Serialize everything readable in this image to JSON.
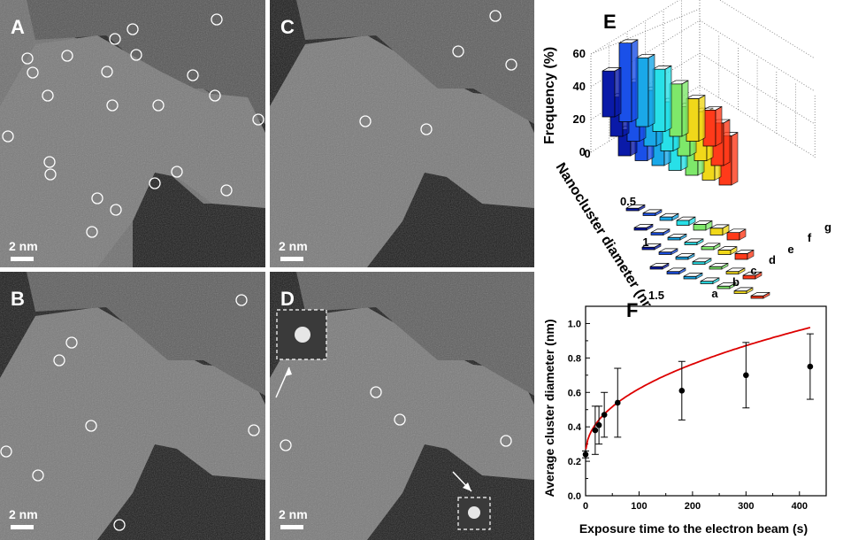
{
  "panels": [
    {
      "label": "A",
      "scale": "2 nm"
    },
    {
      "label": "B",
      "scale": "2 nm"
    },
    {
      "label": "C",
      "scale": "2 nm"
    },
    {
      "label": "D",
      "scale": "2 nm"
    }
  ],
  "panelE": {
    "label": "E",
    "zlabel": "Frequency (%)",
    "ylabel": "Nanocluster diameter (nm)",
    "zticks": [
      "0",
      "20",
      "40",
      "60"
    ],
    "yticks": [
      "0",
      "0.5",
      "1",
      "1.5"
    ],
    "xticks": [
      "a",
      "b",
      "c",
      "d",
      "e",
      "f",
      "g"
    ]
  },
  "chart_data": {
    "type": "scatter",
    "label": "F",
    "xlabel": "Exposure time to the electron beam (s)",
    "ylabel": "Average cluster diameter (nm)",
    "xlim": [
      0,
      450
    ],
    "ylim": [
      0,
      1.1
    ],
    "xticks": [
      "0",
      "100",
      "200",
      "300",
      "400"
    ],
    "yticks": [
      "0.0",
      "0.2",
      "0.4",
      "0.6",
      "0.8",
      "1.0"
    ],
    "points": [
      {
        "x": 0,
        "y": 0.24,
        "err": 0.02
      },
      {
        "x": 18,
        "y": 0.38,
        "err": 0.14
      },
      {
        "x": 25,
        "y": 0.41,
        "err": 0.11
      },
      {
        "x": 35,
        "y": 0.47,
        "err": 0.13
      },
      {
        "x": 60,
        "y": 0.54,
        "err": 0.2
      },
      {
        "x": 180,
        "y": 0.61,
        "err": 0.17
      },
      {
        "x": 300,
        "y": 0.7,
        "err": 0.19
      },
      {
        "x": 420,
        "y": 0.75,
        "err": 0.19
      }
    ],
    "fit": {
      "color": "#dd0000"
    }
  }
}
